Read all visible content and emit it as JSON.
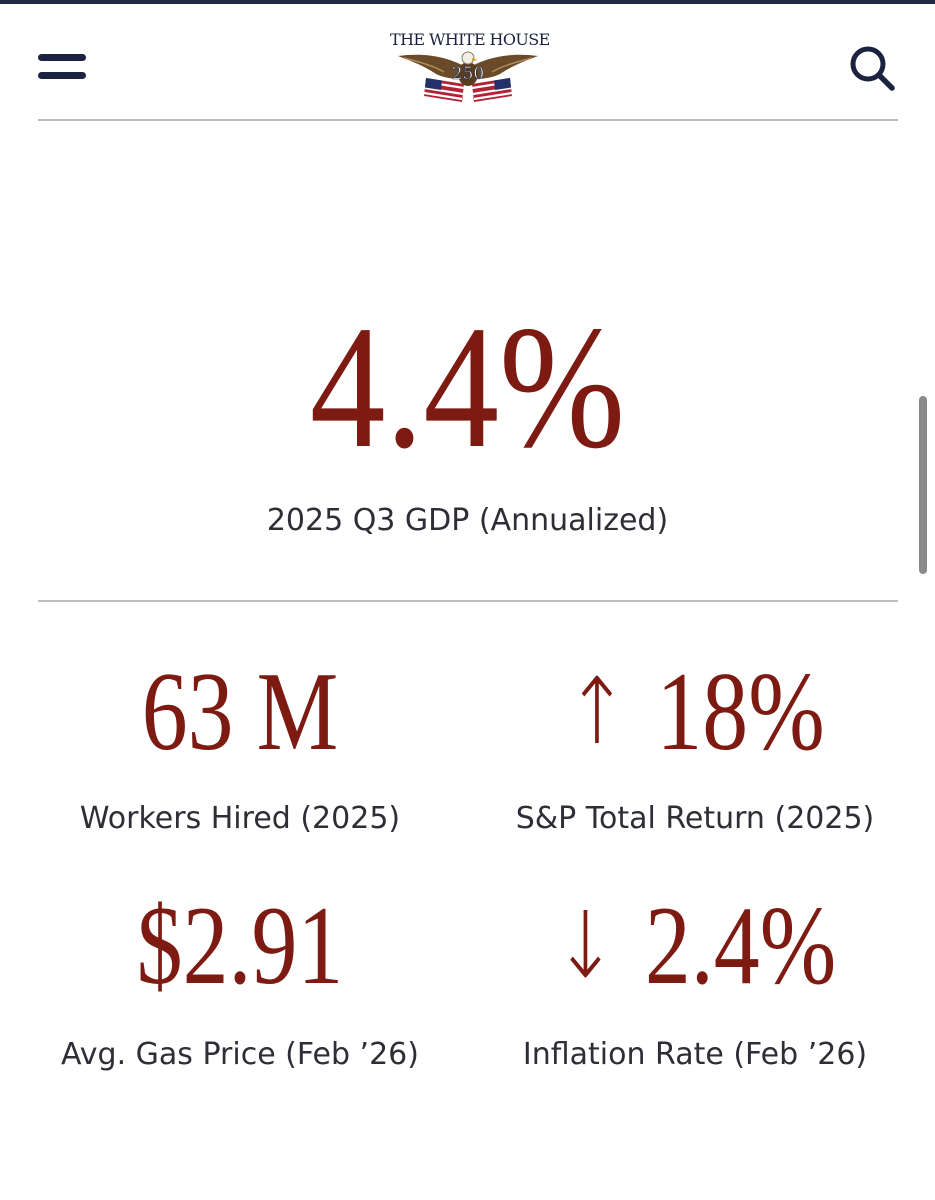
{
  "header": {
    "logo_text": "THE WHITE HOUSE",
    "logo_number": "250",
    "menu_icon": "hamburger-menu-icon",
    "search_icon": "search-icon"
  },
  "hero": {
    "value": "4.4%",
    "label": "2025 Q3 GDP (Annualized)"
  },
  "stats": [
    {
      "value": "63 M",
      "label": "Workers Hired (2025)"
    },
    {
      "arrow": "↑",
      "value": "18%",
      "label": "S&P Total Return (2025)"
    },
    {
      "value": "$2.91",
      "label": "Avg. Gas Price (Feb ’26)"
    },
    {
      "arrow": "↓",
      "value": "2.4%",
      "label": "Inflation Rate (Feb ’26)"
    }
  ],
  "colors": {
    "accent": "#7d1a12",
    "navy": "#1c2340",
    "text": "#2e2e36",
    "divider": "#bdbdbd"
  }
}
